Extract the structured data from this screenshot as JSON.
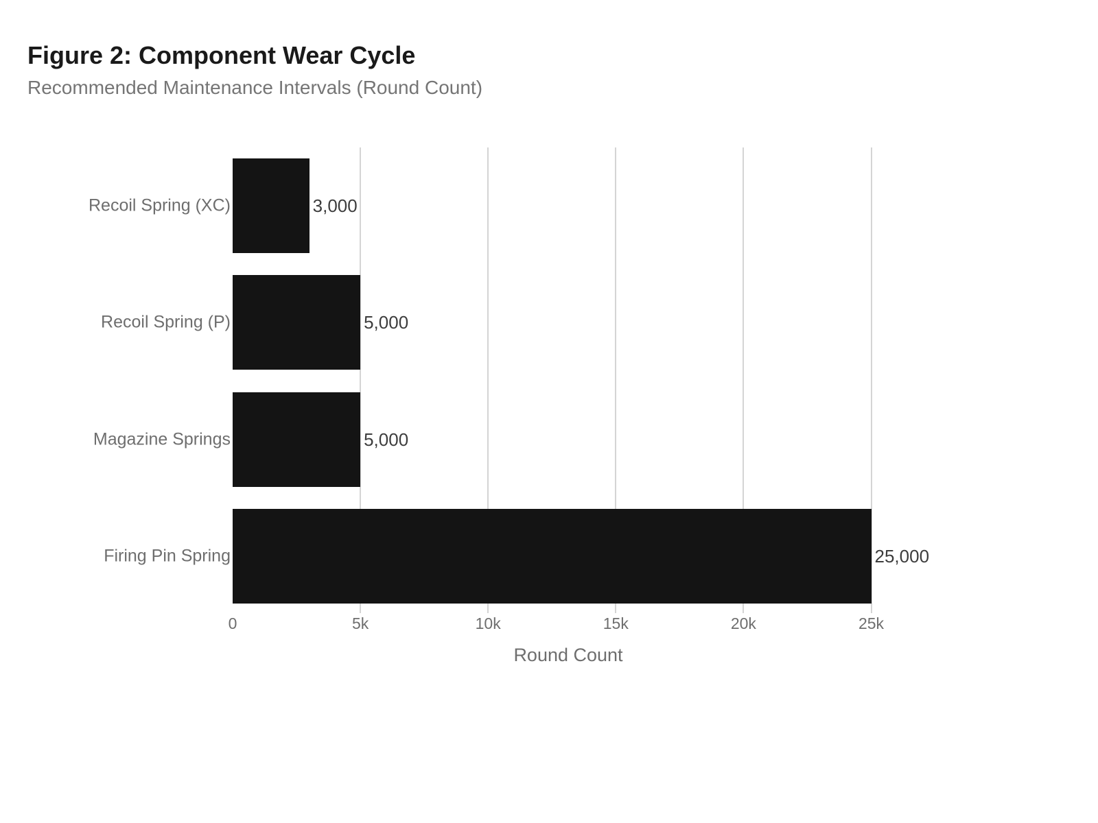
{
  "figure": {
    "title": "Figure 2: Component Wear Cycle",
    "subtitle": "Recommended Maintenance Intervals (Round Count)"
  },
  "chart_data": {
    "type": "bar",
    "orientation": "horizontal",
    "title": "Figure 2: Component Wear Cycle",
    "subtitle": "Recommended Maintenance Intervals (Round Count)",
    "categories": [
      "Recoil Spring (XC)",
      "Recoil Spring (P)",
      "Magazine Springs",
      "Firing Pin Spring"
    ],
    "values": [
      3000,
      5000,
      5000,
      25000
    ],
    "value_labels": [
      "3,000",
      "5,000",
      "5,000",
      "25,000"
    ],
    "xlabel": "Round Count",
    "ylabel": "",
    "xlim": [
      0,
      25750
    ],
    "x_ticks": [
      {
        "value": 0,
        "label": "0"
      },
      {
        "value": 5000,
        "label": "5k"
      },
      {
        "value": 10000,
        "label": "10k"
      },
      {
        "value": 15000,
        "label": "15k"
      },
      {
        "value": 20000,
        "label": "20k"
      },
      {
        "value": 25000,
        "label": "25k"
      }
    ],
    "grid": "vertical gridlines at non-zero ticks",
    "legend_position": "none",
    "colors": {
      "bar": "#141414",
      "grid": "#d4d4d4",
      "title": "#1a1a1a",
      "subtitle": "#757575",
      "category_label": "#6e6e6e",
      "tick_label": "#6e6e6e",
      "axis_title": "#6e6e6e",
      "value_label": "#3d3d3d",
      "background": "#ffffff"
    }
  }
}
